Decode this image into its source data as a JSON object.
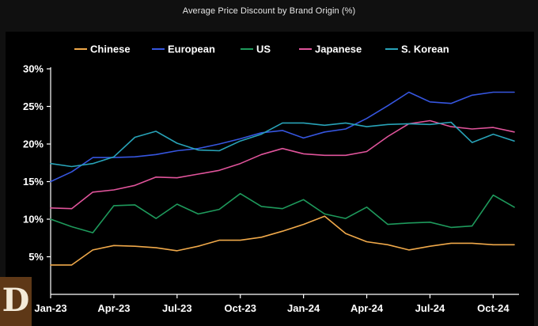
{
  "chart_data": {
    "type": "line",
    "title": "Average Price Discount by Brand Origin (%)",
    "xlabel": "",
    "ylabel": "",
    "ylim": [
      0,
      30
    ],
    "y_ticks": [
      5,
      10,
      15,
      20,
      25,
      30
    ],
    "y_tick_labels": [
      "5%",
      "10%",
      "15%",
      "20%",
      "25%",
      "30%"
    ],
    "x_tick_labels": [
      "Jan-23",
      "Apr-23",
      "Jul-23",
      "Oct-23",
      "Jan-24",
      "Apr-24",
      "Jul-24",
      "Oct-24"
    ],
    "x_tick_indices": [
      0,
      3,
      6,
      9,
      12,
      15,
      18,
      21
    ],
    "legend_position": "top",
    "grid": false,
    "categories": [
      "Jan-23",
      "Feb-23",
      "Mar-23",
      "Apr-23",
      "May-23",
      "Jun-23",
      "Jul-23",
      "Aug-23",
      "Sep-23",
      "Oct-23",
      "Nov-23",
      "Dec-23",
      "Jan-24",
      "Feb-24",
      "Mar-24",
      "Apr-24",
      "May-24",
      "Jun-24",
      "Jul-24",
      "Aug-24",
      "Sep-24",
      "Oct-24",
      "Nov-24"
    ],
    "series": [
      {
        "name": "Chinese",
        "color": "#f0a94a",
        "values": [
          3.9,
          3.9,
          5.9,
          6.5,
          6.4,
          6.2,
          5.8,
          6.4,
          7.2,
          7.2,
          7.6,
          8.4,
          9.3,
          10.4,
          8.1,
          7.0,
          6.6,
          5.9,
          6.4,
          6.8,
          6.8,
          6.6,
          6.6
        ]
      },
      {
        "name": "European",
        "color": "#3656e0",
        "values": [
          15.0,
          16.3,
          18.2,
          18.2,
          18.3,
          18.6,
          19.1,
          19.4,
          20.0,
          20.7,
          21.5,
          21.8,
          20.8,
          21.6,
          22.0,
          23.4,
          25.1,
          26.9,
          25.6,
          25.4,
          26.5,
          26.9,
          26.9
        ]
      },
      {
        "name": "US",
        "color": "#1e9a5c",
        "values": [
          10.0,
          9.0,
          8.2,
          11.8,
          11.9,
          10.1,
          12.0,
          10.7,
          11.3,
          13.4,
          11.7,
          11.4,
          12.6,
          10.7,
          10.1,
          11.6,
          9.3,
          9.5,
          9.6,
          8.9,
          9.1,
          13.2,
          11.6
        ]
      },
      {
        "name": "Japanese",
        "color": "#e0549b",
        "values": [
          11.5,
          11.4,
          13.6,
          13.9,
          14.5,
          15.6,
          15.5,
          16.0,
          16.5,
          17.4,
          18.6,
          19.4,
          18.7,
          18.5,
          18.5,
          19.0,
          21.0,
          22.7,
          23.1,
          22.3,
          22.0,
          22.2,
          21.6
        ]
      },
      {
        "name": "S. Korean",
        "color": "#28a3b8",
        "values": [
          17.4,
          17.0,
          17.4,
          18.3,
          20.9,
          21.7,
          20.1,
          19.2,
          19.1,
          20.4,
          21.3,
          22.8,
          22.8,
          22.5,
          22.8,
          22.3,
          22.6,
          22.7,
          22.6,
          22.9,
          20.2,
          21.3,
          20.4
        ]
      }
    ]
  }
}
